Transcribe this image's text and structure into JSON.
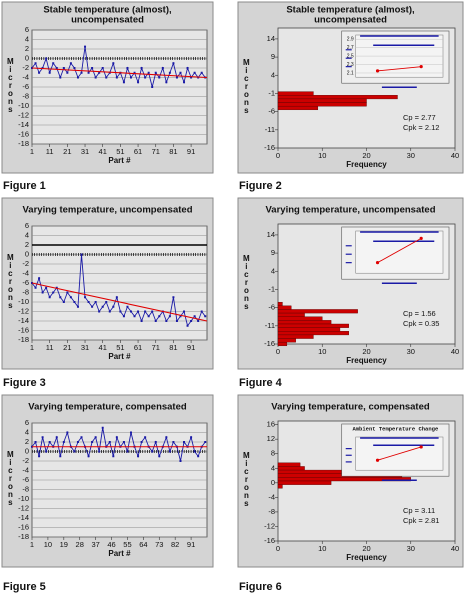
{
  "chart_data": [
    {
      "type": "line",
      "title": [
        "Stable temperature (almost),",
        "uncompensated"
      ],
      "caption": "Figure 1",
      "ylabel": "Microns",
      "xlabel": "Part #",
      "xlim": [
        1,
        100
      ],
      "xticks": [
        1,
        11,
        21,
        31,
        41,
        51,
        61,
        71,
        81,
        91
      ],
      "ylim": [
        -18,
        6
      ],
      "yticks": [
        6,
        4,
        2,
        0,
        -2,
        -4,
        -6,
        -8,
        -10,
        -12,
        -14,
        -16,
        -18
      ],
      "grid": true,
      "reference_lines": [
        {
          "value": 0,
          "style": "hatched"
        }
      ],
      "series": [
        {
          "color": "#1a1aa6",
          "x": [
            1,
            3,
            5,
            7,
            9,
            11,
            13,
            15,
            17,
            19,
            21,
            23,
            25,
            27,
            29,
            31,
            33,
            35,
            37,
            39,
            41,
            43,
            45,
            47,
            49,
            51,
            53,
            55,
            57,
            59,
            61,
            63,
            65,
            67,
            69,
            71,
            73,
            75,
            77,
            79,
            81,
            83,
            85,
            87,
            89,
            91,
            93,
            95,
            97,
            99
          ],
          "values": [
            -2,
            -1,
            -3,
            -2,
            0,
            -3,
            -1,
            -2,
            -4,
            -2,
            -3,
            -1,
            -2,
            -4,
            -3,
            2.5,
            -3,
            -2,
            -4,
            -3,
            -2,
            -4,
            -3,
            -1,
            -4,
            -3,
            -5,
            -2,
            -4,
            -3,
            -5,
            -2,
            -4,
            -3,
            -6,
            -3,
            -4,
            -2,
            -5,
            -3,
            -1,
            -4,
            -3,
            -5,
            -2,
            -4,
            -3,
            -4,
            -3,
            -4
          ]
        },
        {
          "color": "#e00000",
          "x": [
            1,
            100
          ],
          "values": [
            -2,
            -4
          ]
        }
      ]
    },
    {
      "type": "barh",
      "title": [
        "Stable temperature (almost),",
        "uncompensated"
      ],
      "caption": "Figure 2",
      "ylabel": "Microns",
      "xlabel": "Frequency",
      "color": "#cc0000",
      "y": [
        -1,
        -2,
        -3,
        -4,
        -5
      ],
      "values": [
        8,
        27,
        20,
        20,
        9
      ],
      "xlim": [
        0,
        40
      ],
      "xticks": [
        0,
        10,
        20,
        30,
        40
      ],
      "ylim": [
        -16,
        17
      ],
      "yticks": [
        14,
        9,
        4,
        -1,
        -6,
        -11,
        -16
      ],
      "stats": [
        "Cp  = 2.77",
        "Cpk = 2.12"
      ],
      "inset": {
        "ylim": [
          2.0,
          3.0
        ],
        "yticks": [
          2.9,
          2.7,
          2.5,
          2.3,
          2.1
        ],
        "values": [
          2.15,
          2.25
        ],
        "color": "#e00000"
      }
    },
    {
      "type": "line",
      "title": "Varying temperature, uncompensated",
      "caption": "Figure 3",
      "ylabel": "Microns",
      "xlabel": "Part #",
      "xlim": [
        1,
        100
      ],
      "xticks": [
        1,
        11,
        21,
        31,
        41,
        51,
        61,
        71,
        81,
        91
      ],
      "ylim": [
        -18,
        6
      ],
      "yticks": [
        6,
        4,
        2,
        0,
        -2,
        -4,
        -6,
        -8,
        -10,
        -12,
        -14,
        -16,
        -18
      ],
      "grid": true,
      "reference_lines": [
        {
          "value": 0,
          "style": "hatched"
        },
        {
          "value": 2,
          "style": "solid"
        }
      ],
      "series": [
        {
          "color": "#1a1aa6",
          "x": [
            1,
            3,
            5,
            7,
            9,
            11,
            13,
            15,
            17,
            19,
            21,
            23,
            25,
            27,
            29,
            31,
            33,
            35,
            37,
            39,
            41,
            43,
            45,
            47,
            49,
            51,
            53,
            55,
            57,
            59,
            61,
            63,
            65,
            67,
            69,
            71,
            73,
            75,
            77,
            79,
            81,
            83,
            85,
            87,
            89,
            91,
            93,
            95,
            97,
            99
          ],
          "values": [
            -6,
            -7,
            -5,
            -8,
            -7,
            -9,
            -8,
            -7,
            -9,
            -10,
            -8,
            -9,
            -10,
            -11,
            0,
            -9,
            -10,
            -11,
            -10,
            -12,
            -11,
            -10,
            -12,
            -11,
            -9,
            -12,
            -13,
            -11,
            -12,
            -13,
            -12,
            -14,
            -12,
            -13,
            -12,
            -14,
            -13,
            -12,
            -14,
            -13,
            -9,
            -14,
            -13,
            -12,
            -15,
            -14,
            -13,
            -14,
            -12,
            -13
          ]
        },
        {
          "color": "#e00000",
          "x": [
            1,
            100
          ],
          "values": [
            -6,
            -14
          ]
        }
      ]
    },
    {
      "type": "barh",
      "title": "Varying temperature, uncompensated",
      "caption": "Figure 4",
      "ylabel": "Microns",
      "xlabel": "Frequency",
      "color": "#cc0000",
      "y": [
        -5,
        -6,
        -7,
        -8,
        -9,
        -10,
        -11,
        -12,
        -13,
        -14,
        -15,
        -16
      ],
      "values": [
        1,
        3,
        18,
        6,
        10,
        12,
        16,
        14,
        16,
        8,
        4,
        2
      ],
      "xlim": [
        0,
        40
      ],
      "xticks": [
        0,
        10,
        20,
        30,
        40
      ],
      "ylim": [
        -16,
        17
      ],
      "yticks": [
        14,
        9,
        4,
        -1,
        -6,
        -11,
        -16
      ],
      "stats": [
        "Cp  = 1.56",
        "Cpk = 0.35"
      ],
      "inset": {
        "ylim": [
          0,
          4
        ],
        "values": [
          1,
          3.3
        ],
        "color": "#e00000"
      }
    },
    {
      "type": "line",
      "title": "Varying temperature, compensated",
      "caption": "Figure 5",
      "ylabel": "Microns",
      "xlabel": "Part #",
      "xlim": [
        1,
        100
      ],
      "xticks": [
        1,
        10,
        19,
        28,
        37,
        46,
        55,
        64,
        73,
        82,
        91
      ],
      "ylim": [
        -18,
        6
      ],
      "yticks": [
        6,
        4,
        2,
        0,
        -2,
        -4,
        -6,
        -8,
        -10,
        -12,
        -14,
        -16,
        -18
      ],
      "grid": true,
      "reference_lines": [
        {
          "value": 0,
          "style": "hatched"
        }
      ],
      "series": [
        {
          "color": "#1a1aa6",
          "x": [
            1,
            3,
            5,
            7,
            9,
            11,
            13,
            15,
            17,
            19,
            21,
            23,
            25,
            27,
            29,
            31,
            33,
            35,
            37,
            39,
            41,
            43,
            45,
            47,
            49,
            51,
            53,
            55,
            57,
            59,
            61,
            63,
            65,
            67,
            69,
            71,
            73,
            75,
            77,
            79,
            81,
            83,
            85,
            87,
            89,
            91,
            93,
            95,
            97,
            99
          ],
          "values": [
            1,
            2,
            -1,
            3,
            0,
            2,
            1,
            3,
            -1,
            2,
            4,
            1,
            0,
            2,
            3,
            1,
            -1,
            2,
            3,
            0,
            5,
            1,
            2,
            -1,
            3,
            1,
            2,
            0,
            4,
            1,
            -1,
            2,
            3,
            1,
            0,
            2,
            -1,
            1,
            3,
            0,
            2,
            1,
            -2,
            2,
            1,
            3,
            0,
            -1,
            1,
            2
          ]
        },
        {
          "color": "#e00000",
          "x": [
            1,
            100
          ],
          "values": [
            1,
            1
          ]
        }
      ]
    },
    {
      "type": "barh",
      "title": "Varying temperature, compensated",
      "caption": "Figure 6",
      "ylabel": "Microns",
      "xlabel": "Frequency",
      "color": "#cc0000",
      "y": [
        5,
        4,
        3,
        2,
        1,
        0,
        -1
      ],
      "values": [
        5,
        6,
        16,
        28,
        30,
        12,
        1
      ],
      "xlim": [
        0,
        40
      ],
      "xticks": [
        0,
        10,
        20,
        30,
        40
      ],
      "ylim": [
        -16,
        17
      ],
      "yticks": [
        16,
        12,
        8,
        4,
        0,
        -4,
        -8,
        -12,
        -16
      ],
      "stats": [
        "Cp   = 3.11",
        "Cpk = 2.81"
      ],
      "inset": {
        "title": "Ambient Temperature Change",
        "ylim": [
          0,
          4
        ],
        "values": [
          1.2,
          2.8
        ],
        "color": "#e00000"
      }
    }
  ]
}
